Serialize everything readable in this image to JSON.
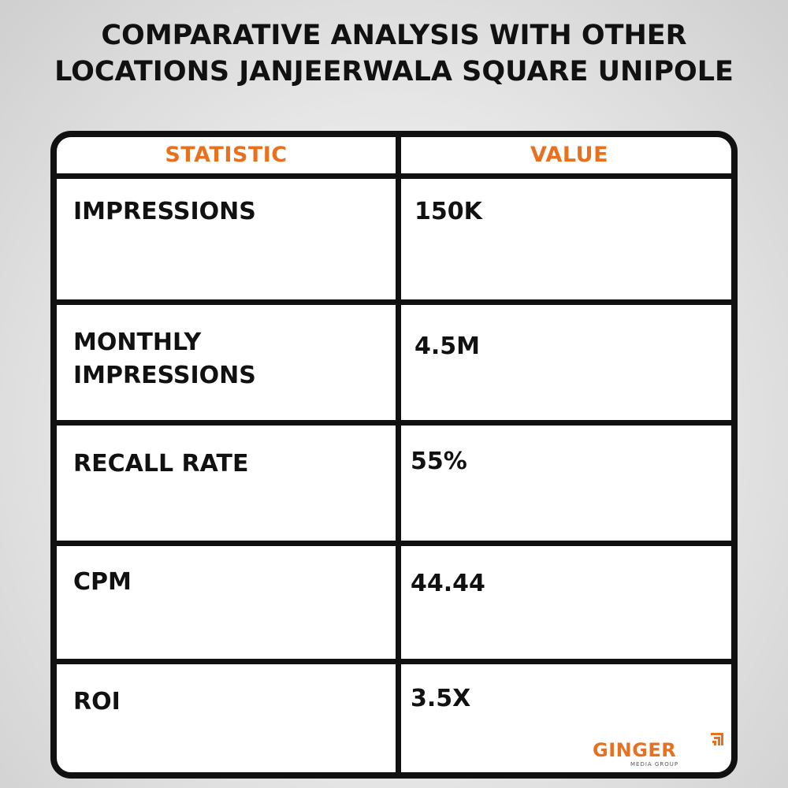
{
  "title": {
    "line1": "COMPARATIVE ANALYSIS WITH OTHER",
    "line2": "LOCATIONS JANJEERWALA SQUARE UNIPOLE"
  },
  "table": {
    "headers": [
      "STATISTIC",
      "VALUE"
    ],
    "rows": [
      {
        "statistic": "IMPRESSIONS",
        "value": "150K"
      },
      {
        "statistic_line1": "MONTHLY",
        "statistic_line2": "IMPRESSIONS",
        "value": "4.5M"
      },
      {
        "statistic": "RECALL RATE",
        "value": "55%"
      },
      {
        "statistic": "CPM",
        "value": "44.44"
      },
      {
        "statistic": "ROI",
        "value": "3.5X"
      }
    ]
  },
  "logo": {
    "name": "GINGER",
    "tagline": "MEDIA GROUP",
    "icon": "ginger-logo-icon"
  },
  "colors": {
    "accent": "#e8711f",
    "text": "#111111",
    "border": "#111111",
    "background": "#e9e9e9"
  }
}
